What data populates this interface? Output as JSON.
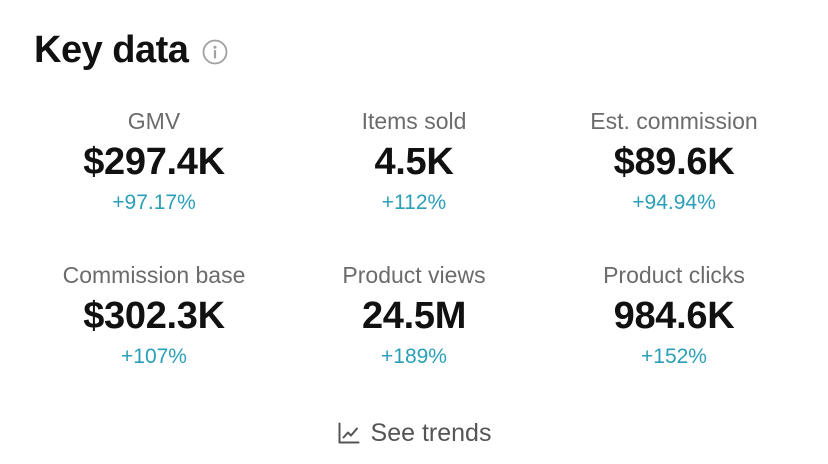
{
  "header": {
    "title": "Key data",
    "info_icon": "info-circle-icon"
  },
  "colors": {
    "title": "#111111",
    "label": "#6b6b6b",
    "positive_change": "#2a9fb8",
    "trends_text": "#555555"
  },
  "metrics": [
    {
      "label": "GMV",
      "value": "$297.4K",
      "change": "+97.17%"
    },
    {
      "label": "Items sold",
      "value": "4.5K",
      "change": "+112%"
    },
    {
      "label": "Est. commission",
      "value": "$89.6K",
      "change": "+94.94%"
    },
    {
      "label": "Commission base",
      "value": "$302.3K",
      "change": "+107%"
    },
    {
      "label": "Product views",
      "value": "24.5M",
      "change": "+189%"
    },
    {
      "label": "Product clicks",
      "value": "984.6K",
      "change": "+152%"
    }
  ],
  "trends": {
    "label": "See trends",
    "icon": "line-chart-icon"
  }
}
